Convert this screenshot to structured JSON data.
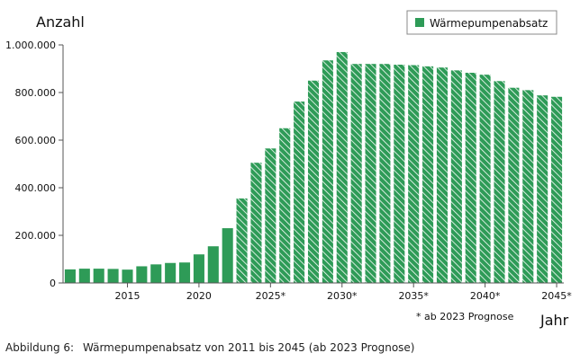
{
  "chart_data": {
    "type": "bar",
    "ylabel": "Anzahl",
    "xlabel": "Jahr",
    "ylim": [
      0,
      1000000
    ],
    "yticks": [
      {
        "value": 0,
        "label": "0"
      },
      {
        "value": 200000,
        "label": "200.000"
      },
      {
        "value": 400000,
        "label": "400.000"
      },
      {
        "value": 600000,
        "label": "600.000"
      },
      {
        "value": 800000,
        "label": "800.000"
      },
      {
        "value": 1000000,
        "label": "1.000.000"
      }
    ],
    "xticks": [
      {
        "year": 2015,
        "label": "2015"
      },
      {
        "year": 2020,
        "label": "2020"
      },
      {
        "year": 2025,
        "label": "2025*"
      },
      {
        "year": 2030,
        "label": "2030*"
      },
      {
        "year": 2035,
        "label": "2035*"
      },
      {
        "year": 2040,
        "label": "2040*"
      },
      {
        "year": 2045,
        "label": "2045*"
      }
    ],
    "legend": {
      "label": "Wärmepumpenabsatz",
      "position": "top-right"
    },
    "forecast_note": "* ab 2023 Prognose",
    "forecast_from": 2023,
    "colors": {
      "bar": "#2e9b57",
      "axis": "#555555",
      "legend_border": "#888888"
    },
    "grid": false,
    "series": [
      {
        "x": [
          2011,
          2012,
          2013,
          2014,
          2015,
          2016,
          2017,
          2018,
          2019,
          2020,
          2021,
          2022,
          2023,
          2024,
          2025,
          2026,
          2027,
          2028,
          2029,
          2030,
          2031,
          2032,
          2033,
          2034,
          2035,
          2036,
          2037,
          2038,
          2039,
          2040,
          2041,
          2042,
          2043,
          2044,
          2045
        ],
        "values": [
          57000,
          60000,
          60000,
          59000,
          56000,
          70000,
          78000,
          84000,
          86000,
          120000,
          154000,
          230000,
          355000,
          505000,
          565000,
          650000,
          762000,
          850000,
          935000,
          970000,
          920000,
          920000,
          920000,
          917000,
          915000,
          910000,
          905000,
          893000,
          883000,
          875000,
          848000,
          820000,
          810000,
          788000,
          782000
        ]
      }
    ]
  },
  "caption": {
    "number": "Abbildung 6:",
    "text": "Wärmepumpenabsatz von 2011 bis 2045 (ab 2023 Prognose)"
  }
}
